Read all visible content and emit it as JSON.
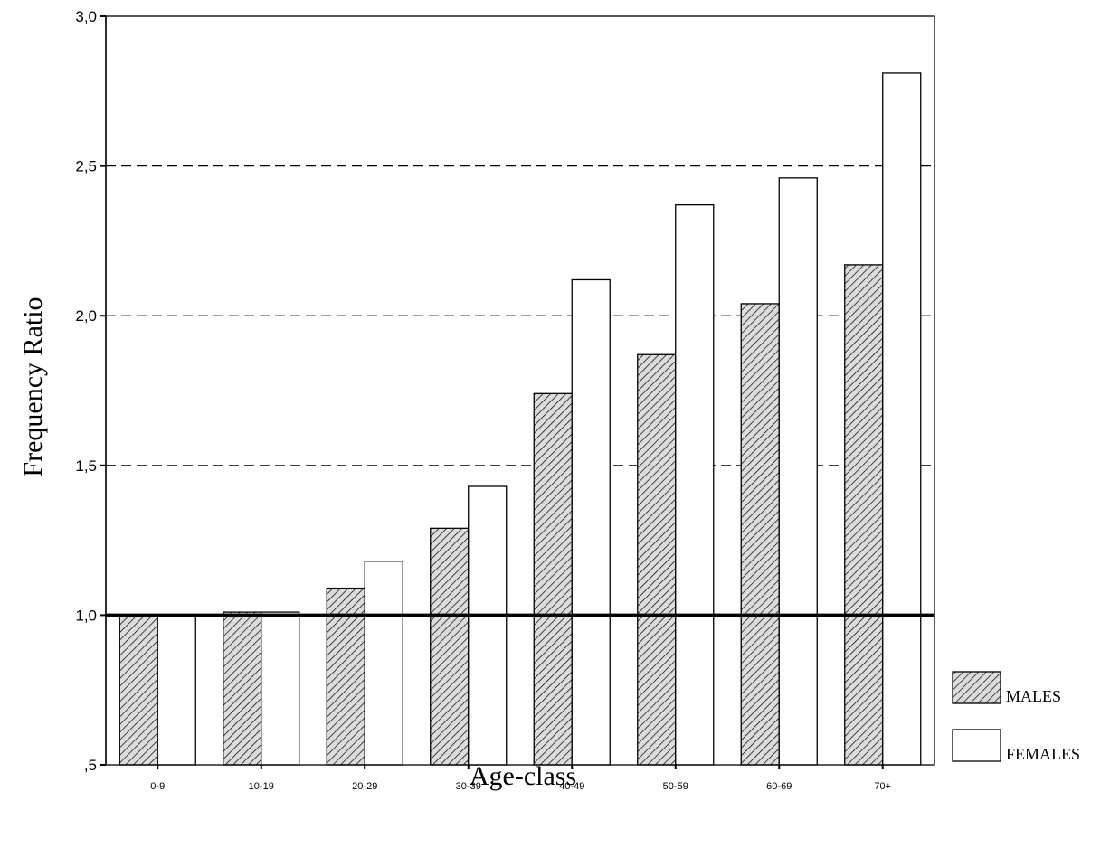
{
  "chart_data": {
    "type": "bar",
    "xlabel": "Age-class",
    "ylabel": "Frequency Ratio",
    "categories": [
      "0-9",
      "10-19",
      "20-29",
      "30-39",
      "40-49",
      "50-59",
      "60-69",
      "70+"
    ],
    "series": [
      {
        "name": "MALES",
        "pattern": "diagonal-hatch",
        "values": [
          1.0,
          1.01,
          1.09,
          1.29,
          1.74,
          1.87,
          2.04,
          2.17
        ]
      },
      {
        "name": "FEMALES",
        "pattern": "blank",
        "values": [
          1.0,
          1.01,
          1.18,
          1.43,
          2.12,
          2.37,
          2.46,
          2.81
        ]
      }
    ],
    "ylim": [
      0.5,
      3.0
    ],
    "yticks": [
      0.5,
      1.0,
      1.5,
      2.0,
      2.5,
      3.0
    ],
    "ytick_labels": [
      ",5",
      "1,0",
      "1,5",
      "2,0",
      "2,5",
      "3,0"
    ],
    "gridlines": {
      "style": "dashed",
      "values": [
        1.5,
        2.0,
        2.5
      ]
    },
    "reference_line": 1.0,
    "legend_position": "bottom-right outside plot",
    "colors": {
      "ink": "#000000",
      "bar_fill": "#ffffff",
      "hatch": "#000000"
    }
  }
}
